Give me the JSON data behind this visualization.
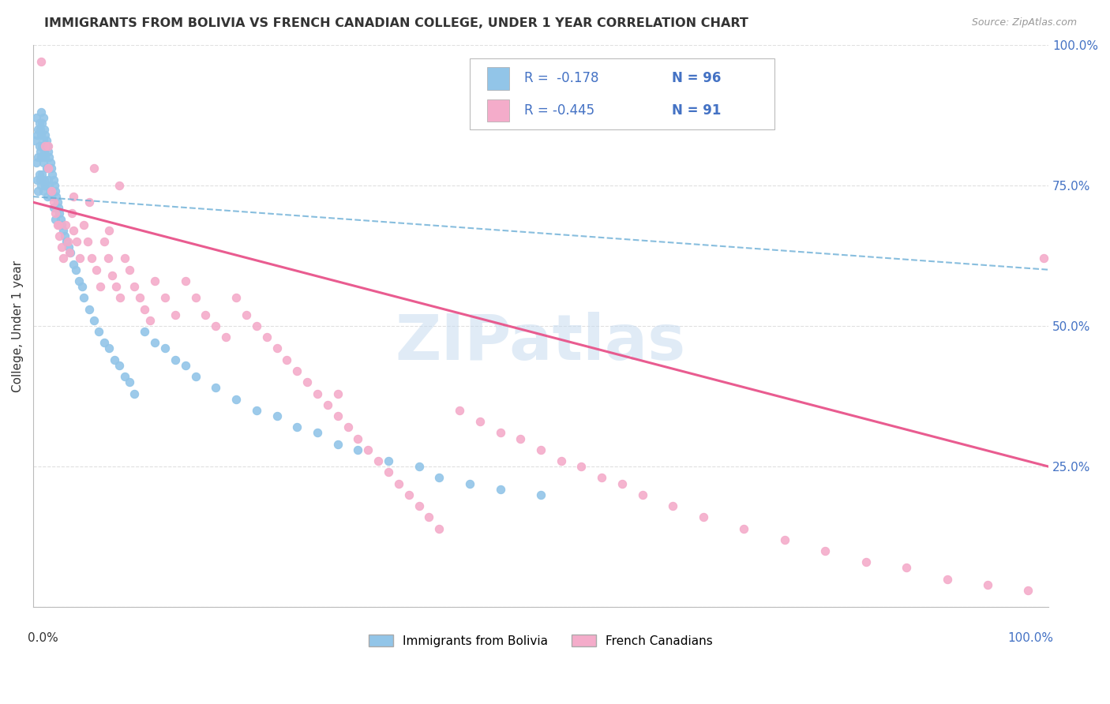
{
  "title": "IMMIGRANTS FROM BOLIVIA VS FRENCH CANADIAN COLLEGE, UNDER 1 YEAR CORRELATION CHART",
  "source": "Source: ZipAtlas.com",
  "ylabel": "College, Under 1 year",
  "color_blue": "#92C5E8",
  "color_blue_line": "#6BAED6",
  "color_pink": "#F4ACCA",
  "color_pink_line": "#E8538A",
  "color_axis_label": "#4472C4",
  "watermark_color": "#C8DCF0",
  "bolivia_x": [
    0.002,
    0.003,
    0.003,
    0.004,
    0.004,
    0.005,
    0.005,
    0.005,
    0.006,
    0.006,
    0.006,
    0.007,
    0.007,
    0.007,
    0.008,
    0.008,
    0.008,
    0.008,
    0.009,
    0.009,
    0.009,
    0.01,
    0.01,
    0.01,
    0.01,
    0.011,
    0.011,
    0.011,
    0.012,
    0.012,
    0.012,
    0.013,
    0.013,
    0.014,
    0.014,
    0.014,
    0.015,
    0.015,
    0.016,
    0.016,
    0.017,
    0.017,
    0.018,
    0.018,
    0.019,
    0.02,
    0.02,
    0.021,
    0.022,
    0.022,
    0.023,
    0.024,
    0.025,
    0.026,
    0.027,
    0.028,
    0.03,
    0.031,
    0.033,
    0.035,
    0.037,
    0.04,
    0.042,
    0.045,
    0.048,
    0.05,
    0.055,
    0.06,
    0.065,
    0.07,
    0.075,
    0.08,
    0.085,
    0.09,
    0.095,
    0.1,
    0.11,
    0.12,
    0.13,
    0.14,
    0.15,
    0.16,
    0.18,
    0.2,
    0.22,
    0.24,
    0.26,
    0.28,
    0.3,
    0.32,
    0.35,
    0.38,
    0.4,
    0.43,
    0.46,
    0.5
  ],
  "bolivia_y": [
    0.83,
    0.87,
    0.79,
    0.84,
    0.76,
    0.85,
    0.8,
    0.74,
    0.86,
    0.82,
    0.77,
    0.85,
    0.81,
    0.76,
    0.88,
    0.84,
    0.8,
    0.75,
    0.86,
    0.82,
    0.77,
    0.87,
    0.83,
    0.79,
    0.74,
    0.85,
    0.81,
    0.76,
    0.84,
    0.8,
    0.75,
    0.83,
    0.78,
    0.82,
    0.78,
    0.73,
    0.81,
    0.76,
    0.8,
    0.75,
    0.79,
    0.74,
    0.78,
    0.73,
    0.77,
    0.76,
    0.71,
    0.75,
    0.74,
    0.69,
    0.73,
    0.72,
    0.71,
    0.7,
    0.69,
    0.68,
    0.67,
    0.66,
    0.65,
    0.64,
    0.63,
    0.61,
    0.6,
    0.58,
    0.57,
    0.55,
    0.53,
    0.51,
    0.49,
    0.47,
    0.46,
    0.44,
    0.43,
    0.41,
    0.4,
    0.38,
    0.49,
    0.47,
    0.46,
    0.44,
    0.43,
    0.41,
    0.39,
    0.37,
    0.35,
    0.34,
    0.32,
    0.31,
    0.29,
    0.28,
    0.26,
    0.25,
    0.23,
    0.22,
    0.21,
    0.2
  ],
  "french_x": [
    0.008,
    0.012,
    0.015,
    0.018,
    0.02,
    0.022,
    0.024,
    0.026,
    0.028,
    0.03,
    0.032,
    0.034,
    0.036,
    0.038,
    0.04,
    0.043,
    0.046,
    0.05,
    0.054,
    0.058,
    0.062,
    0.066,
    0.07,
    0.074,
    0.078,
    0.082,
    0.086,
    0.09,
    0.095,
    0.1,
    0.105,
    0.11,
    0.115,
    0.12,
    0.13,
    0.14,
    0.15,
    0.16,
    0.17,
    0.18,
    0.19,
    0.2,
    0.21,
    0.22,
    0.23,
    0.24,
    0.25,
    0.26,
    0.27,
    0.28,
    0.29,
    0.3,
    0.31,
    0.32,
    0.33,
    0.34,
    0.35,
    0.36,
    0.37,
    0.38,
    0.39,
    0.4,
    0.42,
    0.44,
    0.46,
    0.48,
    0.5,
    0.52,
    0.54,
    0.56,
    0.58,
    0.6,
    0.63,
    0.66,
    0.7,
    0.74,
    0.78,
    0.82,
    0.86,
    0.9,
    0.94,
    0.98,
    0.3,
    0.085,
    0.06,
    0.04,
    0.025,
    0.015,
    0.055,
    0.075,
    0.995
  ],
  "french_y": [
    0.97,
    0.82,
    0.78,
    0.74,
    0.72,
    0.7,
    0.68,
    0.66,
    0.64,
    0.62,
    0.68,
    0.65,
    0.63,
    0.7,
    0.67,
    0.65,
    0.62,
    0.68,
    0.65,
    0.62,
    0.6,
    0.57,
    0.65,
    0.62,
    0.59,
    0.57,
    0.55,
    0.62,
    0.6,
    0.57,
    0.55,
    0.53,
    0.51,
    0.58,
    0.55,
    0.52,
    0.58,
    0.55,
    0.52,
    0.5,
    0.48,
    0.55,
    0.52,
    0.5,
    0.48,
    0.46,
    0.44,
    0.42,
    0.4,
    0.38,
    0.36,
    0.34,
    0.32,
    0.3,
    0.28,
    0.26,
    0.24,
    0.22,
    0.2,
    0.18,
    0.16,
    0.14,
    0.35,
    0.33,
    0.31,
    0.3,
    0.28,
    0.26,
    0.25,
    0.23,
    0.22,
    0.2,
    0.18,
    0.16,
    0.14,
    0.12,
    0.1,
    0.08,
    0.07,
    0.05,
    0.04,
    0.03,
    0.38,
    0.75,
    0.78,
    0.73,
    0.68,
    0.82,
    0.72,
    0.67,
    0.62
  ],
  "bolivia_trend": [
    0.73,
    0.6
  ],
  "french_trend": [
    0.72,
    0.25
  ],
  "bolivia_dashed_extended": [
    0.73,
    -0.3
  ],
  "xlim": [
    0.0,
    1.0
  ],
  "ylim": [
    0.0,
    1.0
  ],
  "xticks": [
    0.0,
    0.2,
    0.4,
    0.6,
    0.8,
    1.0
  ],
  "yticks": [
    0.0,
    0.25,
    0.5,
    0.75,
    1.0
  ],
  "right_ytick_labels": [
    "",
    "25.0%",
    "50.0%",
    "75.0%",
    "100.0%"
  ],
  "grid_color": "#DDDDDD",
  "legend_r1": "R =  -0.178",
  "legend_n1": "N = 96",
  "legend_r2": "R = -0.445",
  "legend_n2": "N = 91"
}
